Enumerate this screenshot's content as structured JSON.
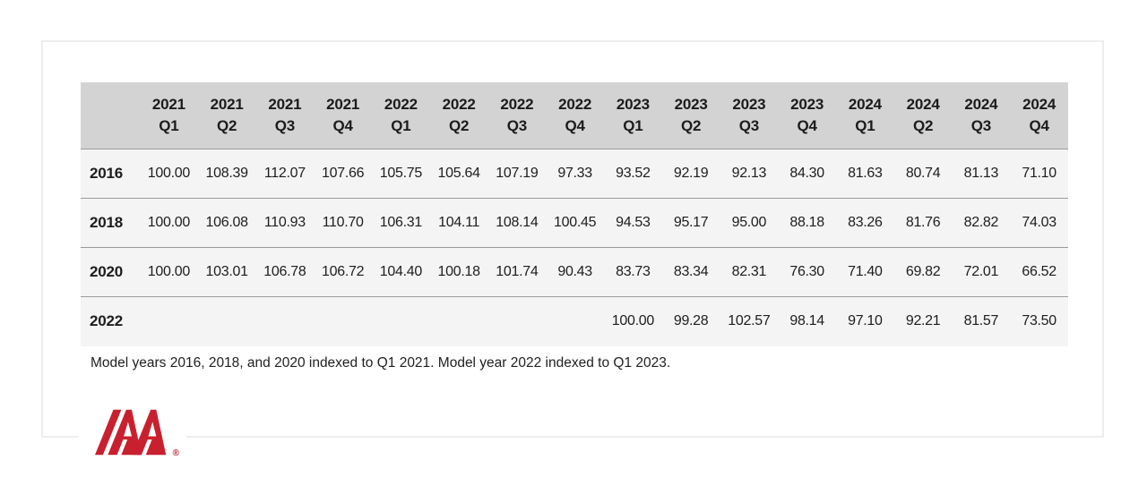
{
  "chart_data": {
    "type": "table",
    "columns": [
      {
        "year": "2021",
        "quarter": "Q1"
      },
      {
        "year": "2021",
        "quarter": "Q2"
      },
      {
        "year": "2021",
        "quarter": "Q3"
      },
      {
        "year": "2021",
        "quarter": "Q4"
      },
      {
        "year": "2022",
        "quarter": "Q1"
      },
      {
        "year": "2022",
        "quarter": "Q2"
      },
      {
        "year": "2022",
        "quarter": "Q3"
      },
      {
        "year": "2022",
        "quarter": "Q4"
      },
      {
        "year": "2023",
        "quarter": "Q1"
      },
      {
        "year": "2023",
        "quarter": "Q2"
      },
      {
        "year": "2023",
        "quarter": "Q3"
      },
      {
        "year": "2023",
        "quarter": "Q4"
      },
      {
        "year": "2024",
        "quarter": "Q1"
      },
      {
        "year": "2024",
        "quarter": "Q2"
      },
      {
        "year": "2024",
        "quarter": "Q3"
      },
      {
        "year": "2024",
        "quarter": "Q4"
      }
    ],
    "rows": [
      {
        "label": "2016",
        "values": [
          "100.00",
          "108.39",
          "112.07",
          "107.66",
          "105.75",
          "105.64",
          "107.19",
          "97.33",
          "93.52",
          "92.19",
          "92.13",
          "84.30",
          "81.63",
          "80.74",
          "81.13",
          "71.10"
        ]
      },
      {
        "label": "2018",
        "values": [
          "100.00",
          "106.08",
          "110.93",
          "110.70",
          "106.31",
          "104.11",
          "108.14",
          "100.45",
          "94.53",
          "95.17",
          "95.00",
          "88.18",
          "83.26",
          "81.76",
          "82.82",
          "74.03"
        ]
      },
      {
        "label": "2020",
        "values": [
          "100.00",
          "103.01",
          "106.78",
          "106.72",
          "104.40",
          "100.18",
          "101.74",
          "90.43",
          "83.73",
          "83.34",
          "82.31",
          "76.30",
          "71.40",
          "69.82",
          "72.01",
          "66.52"
        ]
      },
      {
        "label": "2022",
        "values": [
          "",
          "",
          "",
          "",
          "",
          "",
          "",
          "",
          "100.00",
          "99.28",
          "102.57",
          "98.14",
          "97.10",
          "92.21",
          "81.57",
          "73.50"
        ]
      }
    ],
    "footnote": "Model years 2016, 2018, and 2020 indexed to Q1 2021. Model year 2022 indexed to Q1 2023."
  },
  "logo": {
    "text": "IAA",
    "registered_mark": "®",
    "brand_color": "#c8202e"
  },
  "colors": {
    "header_background": "#d3d3d3",
    "row_background": "#f4f4f4",
    "row_separator": "#9a9a9a",
    "card_border": "#ededed",
    "text": "#1d1d1d"
  }
}
